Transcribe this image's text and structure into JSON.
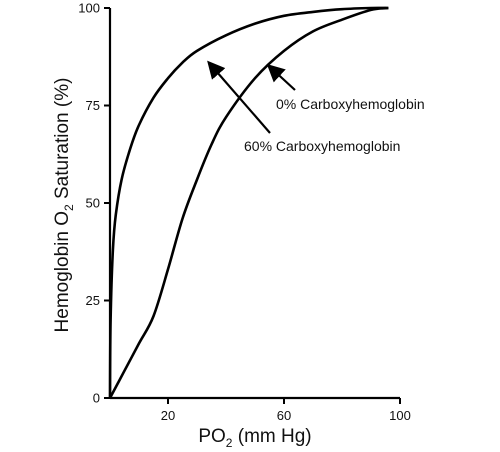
{
  "chart_data": {
    "type": "line",
    "title": "",
    "xlabel": {
      "main": "PO",
      "sub": "2",
      "suffix": " (mm Hg)"
    },
    "ylabel": {
      "main": "Hemoglobin O",
      "sub": "2",
      "suffix": " Saturation (%)"
    },
    "xlim": [
      0,
      100
    ],
    "ylim": [
      0,
      100
    ],
    "xticks": [
      20,
      60,
      100
    ],
    "yticks": [
      0,
      25,
      50,
      75,
      100
    ],
    "grid": false,
    "series": [
      {
        "name": "60% Carboxyhemoglobin",
        "x": [
          0,
          0.2,
          1,
          2,
          4,
          7,
          10,
          15,
          20,
          25,
          30,
          40,
          50,
          60,
          70,
          80,
          90,
          96
        ],
        "y": [
          0,
          20,
          38,
          47,
          56,
          64,
          70,
          77,
          82,
          86,
          89,
          93,
          96,
          98,
          99,
          99.7,
          100,
          100
        ]
      },
      {
        "name": "0% Carboxyhemoglobin",
        "x": [
          0,
          5,
          10,
          15,
          20,
          25,
          30,
          35,
          40,
          50,
          60,
          70,
          80,
          90,
          96
        ],
        "y": [
          0,
          7,
          14,
          21,
          33,
          46,
          56,
          65,
          72,
          82,
          89,
          94,
          97,
          99.5,
          100
        ]
      }
    ],
    "annotations": [
      {
        "text": "0% Carboxyhemoglobin",
        "target_series": "0% Carboxyhemoglobin",
        "at": [
          60,
          85
        ]
      },
      {
        "text": "60% Carboxyhemoglobin",
        "target_series": "60% Carboxyhemoglobin",
        "at": [
          39,
          86
        ]
      }
    ]
  }
}
